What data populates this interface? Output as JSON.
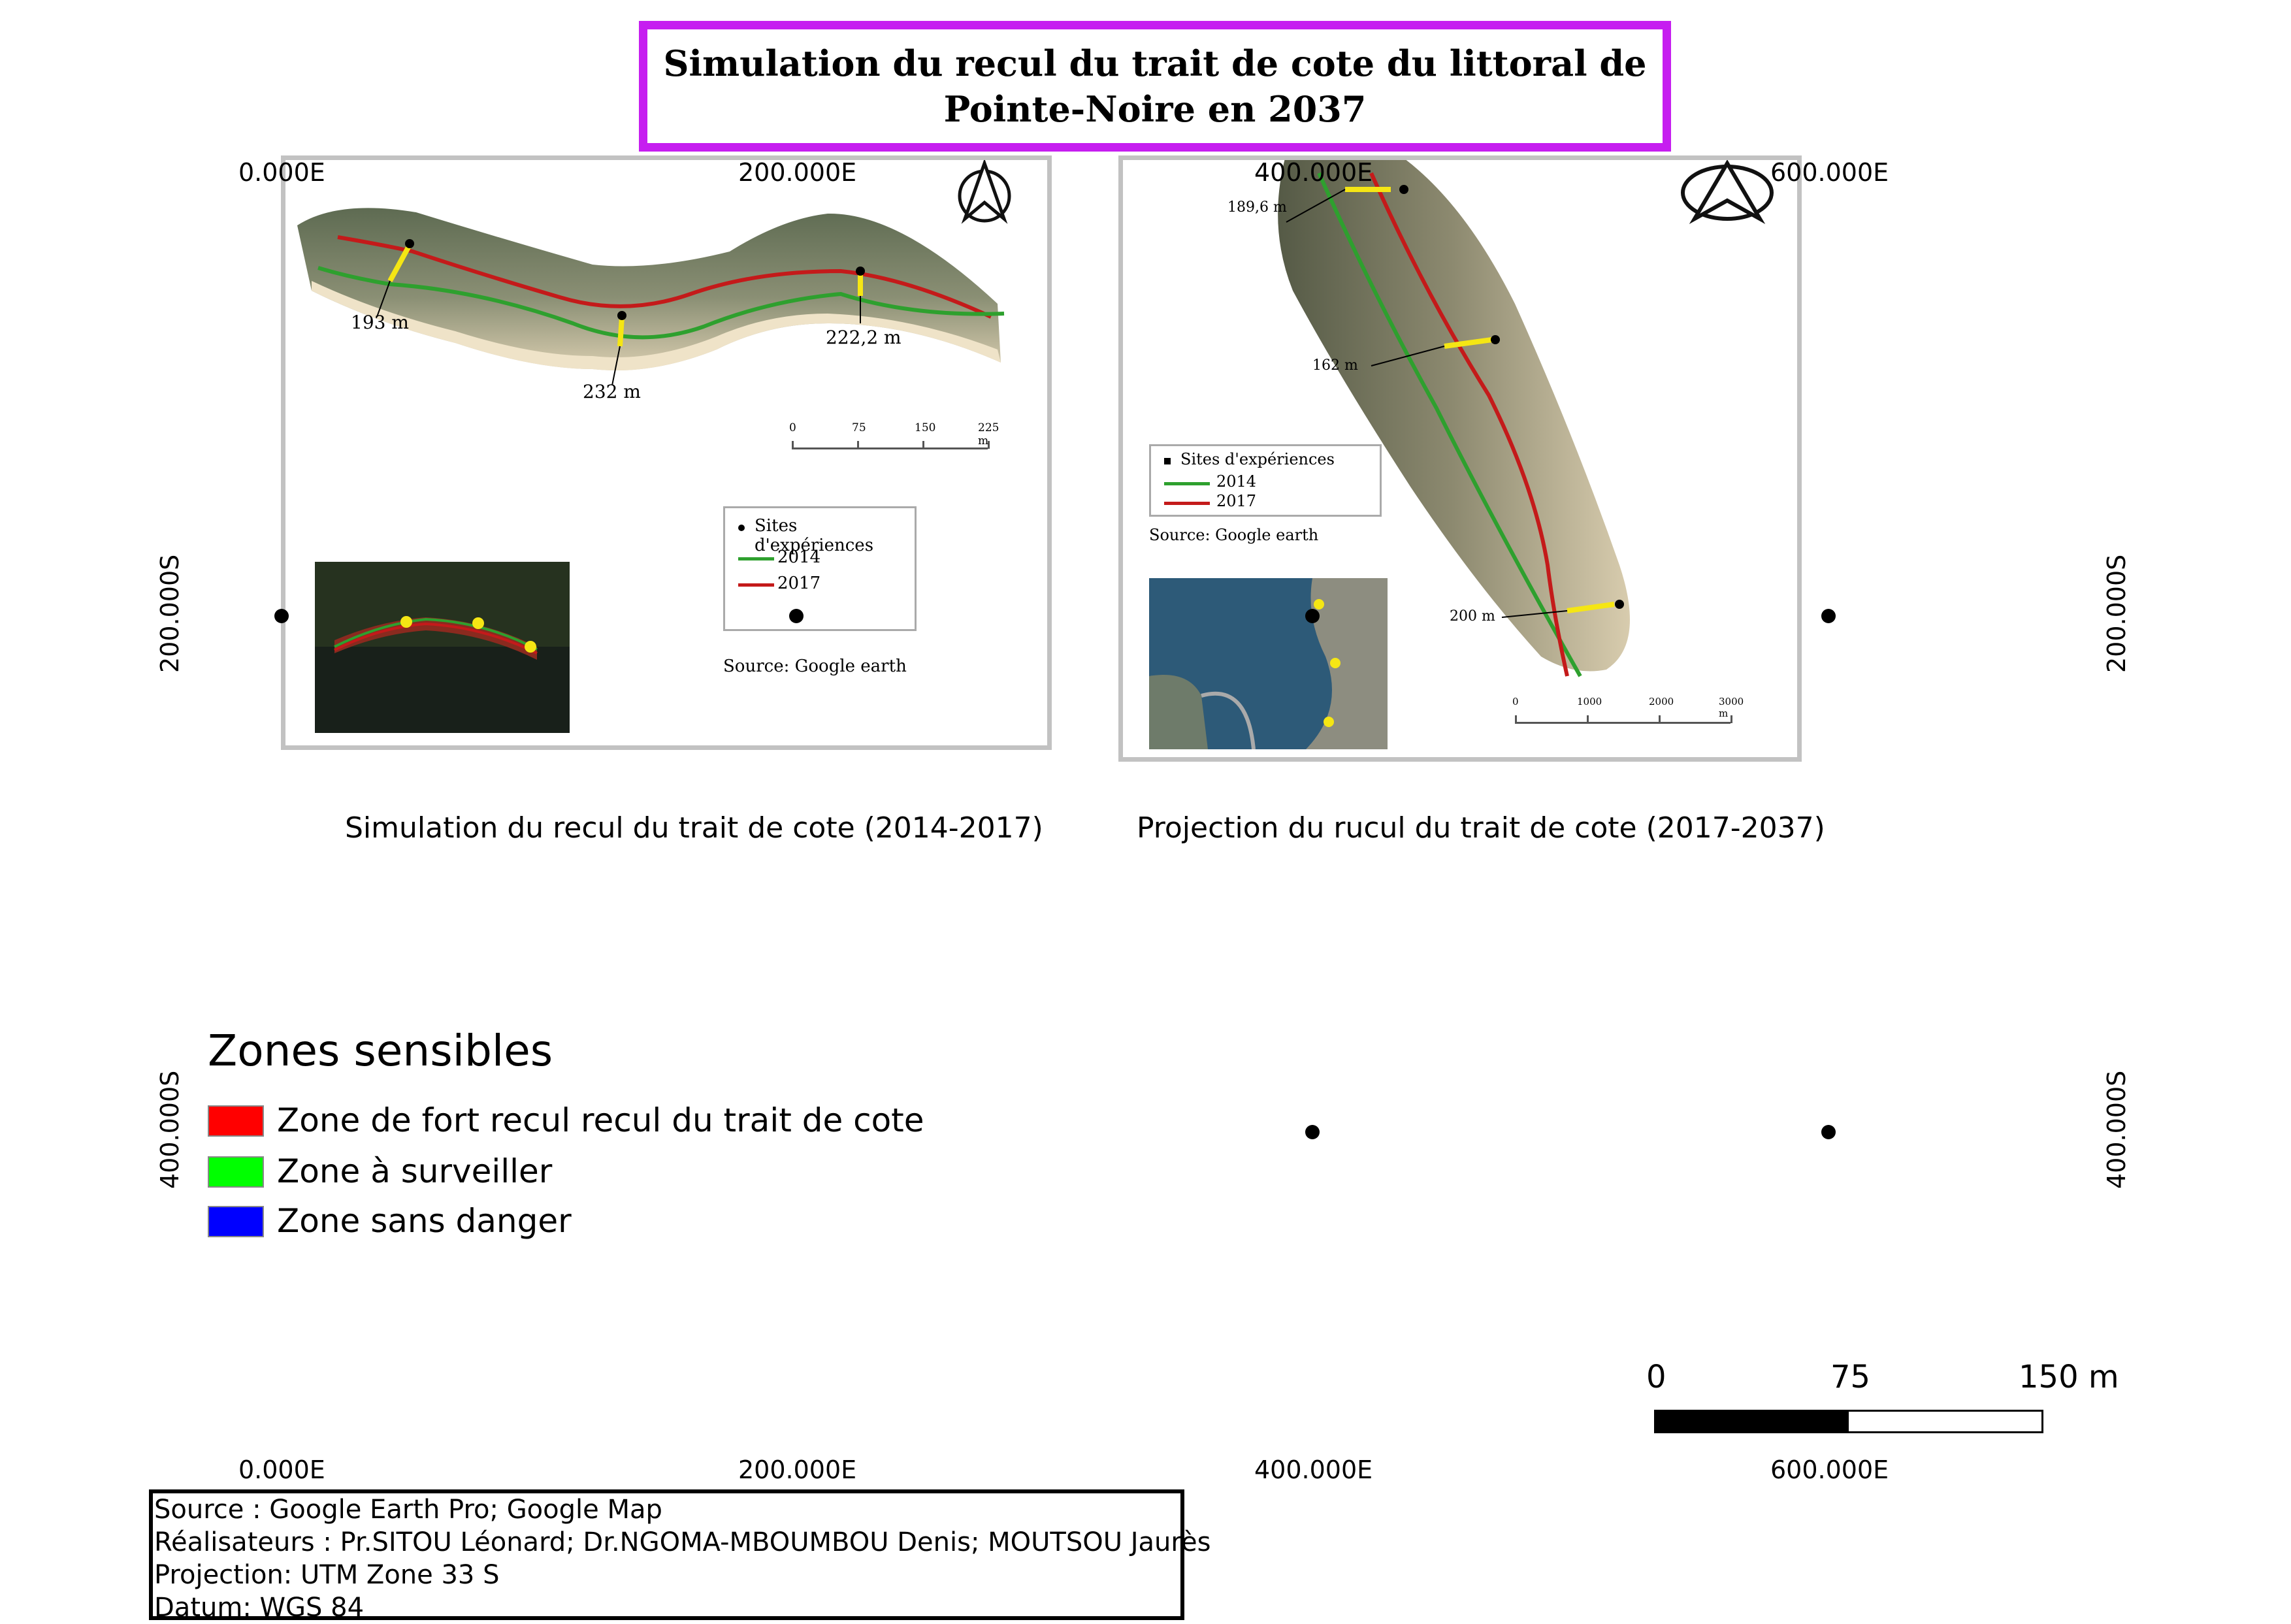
{
  "title": {
    "line1": "Simulation du recul du trait de cote du littoral de",
    "line2": "Pointe-Noire en 2037"
  },
  "grid_labels": {
    "top": [
      "0.000E",
      "200.000E",
      "400.000E",
      "600.000E"
    ],
    "bottom": [
      "0.000E",
      "200.000E",
      "400.000E",
      "600.000E"
    ],
    "left": [
      "200.000S",
      "400.000S"
    ],
    "right": [
      "200.000S",
      "400.000S"
    ]
  },
  "panel_left": {
    "caption": "Simulation du recul du trait de cote (2014-2017)",
    "measurements": [
      "193 m",
      "232 m",
      "222,2 m"
    ],
    "scale_labels": [
      "0",
      "75",
      "150",
      "225 m"
    ],
    "legend": {
      "sites": "Sites d'expériences",
      "year_a": "2014",
      "year_b": "2017"
    },
    "source": "Source: Google earth"
  },
  "panel_right": {
    "caption": "Projection du rucul du trait de cote (2017-2037)",
    "measurements": [
      "189,6 m",
      "162 m",
      "200 m"
    ],
    "scale_labels": [
      "0",
      "1000",
      "2000",
      "3000 m"
    ],
    "legend": {
      "sites": "Sites d'expériences",
      "year_a": "2014",
      "year_b": "2017"
    },
    "source": "Source: Google earth"
  },
  "legend": {
    "title": "Zones sensibles",
    "items": [
      {
        "label": "Zone de fort recul recul du trait de cote",
        "color": "#ff0000"
      },
      {
        "label": "Zone à surveiller",
        "color": "#00ff00"
      },
      {
        "label": "Zone sans danger",
        "color": "#0000ff"
      }
    ]
  },
  "scale_bar": {
    "labels": [
      "0",
      "75",
      "150 m"
    ]
  },
  "credits": {
    "source": "Source : Google Earth Pro; Google Map",
    "authors": "Réalisateurs : Pr.SITOU Léonard; Dr.NGOMA-MBOUMBOU Denis; MOUTSOU Jaurès",
    "projection": "Projection: UTM Zone 33 S",
    "datum": "Datum: WGS 84"
  },
  "colors": {
    "title_border": "#c61ef0",
    "line_2014": "#2ea02e",
    "line_2017": "#c41a1a",
    "site_marker": "#f5e614"
  }
}
